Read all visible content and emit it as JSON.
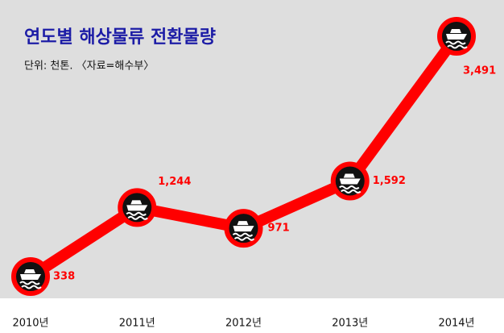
{
  "chart_data": {
    "type": "line",
    "title": "연도별 해상물류 전환물량",
    "subtitle": "단위: 천톤. 〈자료=해수부〉",
    "categories": [
      "2010년",
      "2011년",
      "2012년",
      "2013년",
      "2014년"
    ],
    "values": [
      338,
      1244,
      971,
      1592,
      3491
    ],
    "value_labels": [
      "338",
      "1,244",
      "971",
      "1,592",
      "3,491"
    ],
    "color": "#ff0000"
  }
}
